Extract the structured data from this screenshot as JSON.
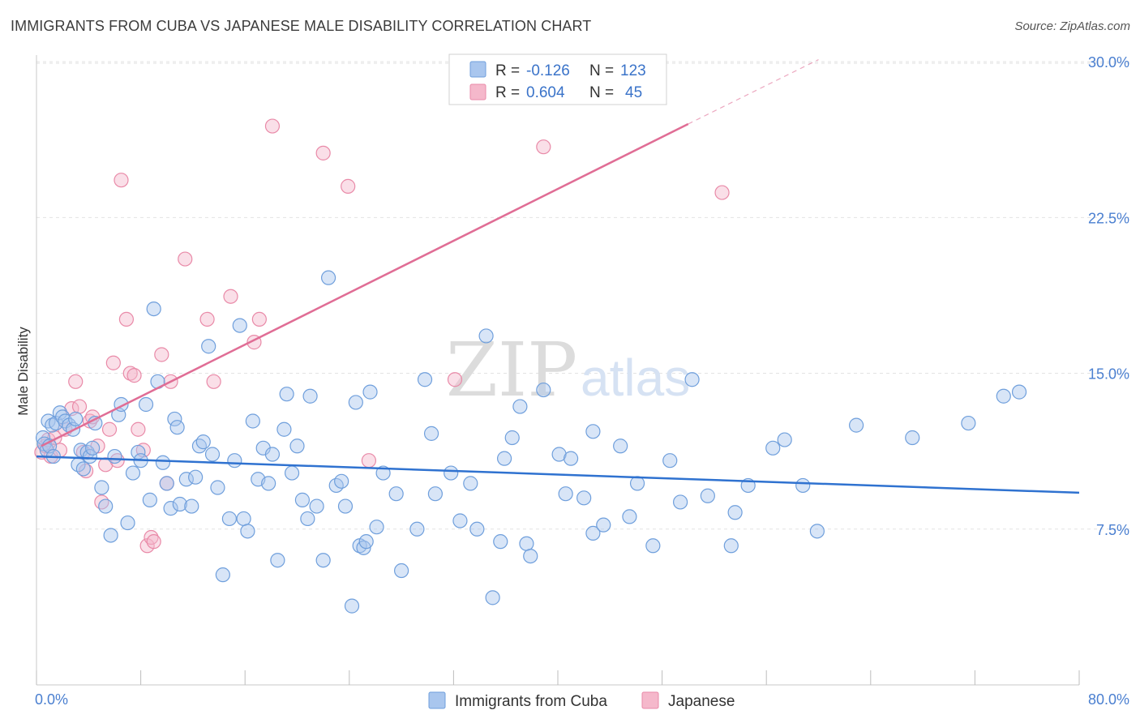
{
  "header": {
    "title": "IMMIGRANTS FROM CUBA VS JAPANESE MALE DISABILITY CORRELATION CHART",
    "source": "Source: ZipAtlas.com"
  },
  "watermark": {
    "zip": "ZIP",
    "atlas": "atlas"
  },
  "colors": {
    "blue_fill": "#a9c6ee",
    "blue_stroke": "#6f9fdc",
    "blue_line": "#2f72d0",
    "pink_fill": "#f5b8cb",
    "pink_stroke": "#e98aa8",
    "pink_line": "#e06d95",
    "grid": "#e2e2e2",
    "tick_text": "#4a7fd0"
  },
  "legend": {
    "rows": [
      {
        "r_label": "R = ",
        "r_value": "-0.126",
        "n_label": "N = ",
        "n_value": "123"
      },
      {
        "r_label": "R = ",
        "r_value": "0.604",
        "n_label": "N = ",
        "n_value": "45"
      }
    ]
  },
  "bottom_legend": [
    "Immigrants from Cuba",
    "Japanese"
  ],
  "chart_data": {
    "type": "scatter",
    "title": "IMMIGRANTS FROM CUBA VS JAPANESE MALE DISABILITY CORRELATION CHART",
    "xlabel": "",
    "ylabel": "Male Disability",
    "xlim": [
      0,
      80
    ],
    "ylim": [
      0,
      31.3
    ],
    "x_tick_labels": [
      "0.0%",
      "80.0%"
    ],
    "y_ticks": [
      7.5,
      15.0,
      22.5,
      30.0
    ],
    "y_tick_labels": [
      "7.5%",
      "15.0%",
      "22.5%",
      "30.0%"
    ],
    "grid": true,
    "legend_position": "top-center",
    "series": [
      {
        "name": "Immigrants from Cuba",
        "r": -0.126,
        "n": 123,
        "trend": {
          "x": [
            0,
            80
          ],
          "y": [
            11.0,
            9.25
          ]
        },
        "points": [
          [
            0.5,
            11.9
          ],
          [
            0.6,
            11.6
          ],
          [
            0.8,
            11.3
          ],
          [
            0.9,
            12.7
          ],
          [
            1.0,
            11.5
          ],
          [
            1.2,
            12.5
          ],
          [
            1.3,
            11.0
          ],
          [
            1.5,
            12.6
          ],
          [
            1.8,
            13.1
          ],
          [
            2.0,
            12.9
          ],
          [
            2.2,
            12.7
          ],
          [
            2.5,
            12.5
          ],
          [
            2.8,
            12.3
          ],
          [
            3.0,
            12.8
          ],
          [
            3.2,
            10.6
          ],
          [
            3.4,
            11.3
          ],
          [
            3.6,
            10.4
          ],
          [
            3.9,
            11.2
          ],
          [
            4.1,
            11.0
          ],
          [
            4.3,
            11.4
          ],
          [
            4.5,
            12.6
          ],
          [
            5.0,
            9.5
          ],
          [
            5.3,
            8.6
          ],
          [
            5.7,
            7.2
          ],
          [
            6.0,
            11.0
          ],
          [
            6.3,
            13.0
          ],
          [
            6.5,
            13.5
          ],
          [
            7.0,
            7.8
          ],
          [
            7.4,
            10.2
          ],
          [
            7.8,
            11.2
          ],
          [
            8.0,
            10.8
          ],
          [
            8.4,
            13.5
          ],
          [
            8.7,
            8.9
          ],
          [
            9.0,
            18.1
          ],
          [
            9.3,
            14.6
          ],
          [
            9.7,
            10.7
          ],
          [
            10.0,
            9.7
          ],
          [
            10.3,
            8.5
          ],
          [
            10.6,
            12.8
          ],
          [
            10.8,
            12.4
          ],
          [
            11.0,
            8.7
          ],
          [
            11.5,
            9.9
          ],
          [
            11.9,
            8.6
          ],
          [
            12.2,
            10.0
          ],
          [
            12.5,
            11.5
          ],
          [
            12.8,
            11.7
          ],
          [
            13.2,
            16.3
          ],
          [
            13.5,
            11.1
          ],
          [
            13.9,
            9.5
          ],
          [
            14.3,
            5.3
          ],
          [
            14.8,
            8.0
          ],
          [
            15.2,
            10.8
          ],
          [
            15.6,
            17.3
          ],
          [
            15.9,
            8.0
          ],
          [
            16.2,
            7.4
          ],
          [
            16.6,
            12.7
          ],
          [
            17.0,
            9.9
          ],
          [
            17.4,
            11.4
          ],
          [
            17.8,
            9.7
          ],
          [
            18.1,
            11.1
          ],
          [
            18.5,
            6.0
          ],
          [
            19.0,
            12.3
          ],
          [
            19.2,
            14.0
          ],
          [
            19.6,
            10.2
          ],
          [
            20.0,
            11.5
          ],
          [
            20.4,
            8.9
          ],
          [
            20.8,
            8.0
          ],
          [
            21.0,
            13.9
          ],
          [
            21.5,
            8.6
          ],
          [
            22.0,
            6.0
          ],
          [
            22.4,
            19.6
          ],
          [
            23.0,
            9.6
          ],
          [
            23.4,
            9.8
          ],
          [
            23.7,
            8.6
          ],
          [
            24.2,
            3.8
          ],
          [
            24.5,
            13.6
          ],
          [
            24.8,
            6.7
          ],
          [
            25.1,
            6.6
          ],
          [
            25.3,
            6.9
          ],
          [
            25.6,
            14.1
          ],
          [
            26.1,
            7.6
          ],
          [
            26.6,
            10.2
          ],
          [
            27.6,
            9.2
          ],
          [
            28.0,
            5.5
          ],
          [
            29.2,
            7.5
          ],
          [
            29.8,
            14.7
          ],
          [
            30.3,
            12.1
          ],
          [
            30.6,
            9.2
          ],
          [
            31.8,
            10.2
          ],
          [
            32.5,
            7.9
          ],
          [
            33.3,
            9.7
          ],
          [
            33.8,
            7.5
          ],
          [
            34.5,
            16.8
          ],
          [
            35.0,
            4.2
          ],
          [
            35.6,
            6.9
          ],
          [
            35.9,
            10.9
          ],
          [
            36.5,
            11.9
          ],
          [
            37.1,
            13.4
          ],
          [
            37.6,
            6.8
          ],
          [
            37.9,
            6.2
          ],
          [
            38.9,
            14.2
          ],
          [
            40.1,
            11.1
          ],
          [
            40.6,
            9.2
          ],
          [
            41.0,
            10.9
          ],
          [
            42.0,
            9.0
          ],
          [
            42.7,
            12.2
          ],
          [
            42.7,
            7.3
          ],
          [
            43.5,
            7.7
          ],
          [
            44.8,
            11.5
          ],
          [
            45.5,
            8.1
          ],
          [
            46.1,
            9.7
          ],
          [
            47.3,
            6.7
          ],
          [
            48.6,
            10.8
          ],
          [
            49.4,
            8.8
          ],
          [
            50.3,
            14.7
          ],
          [
            51.5,
            9.1
          ],
          [
            53.3,
            6.7
          ],
          [
            53.6,
            8.3
          ],
          [
            54.6,
            9.6
          ],
          [
            56.5,
            11.4
          ],
          [
            57.4,
            11.8
          ],
          [
            58.8,
            9.6
          ],
          [
            59.9,
            7.4
          ],
          [
            62.9,
            12.5
          ],
          [
            67.2,
            11.9
          ],
          [
            71.5,
            12.6
          ],
          [
            74.2,
            13.9
          ],
          [
            75.4,
            14.1
          ]
        ]
      },
      {
        "name": "Japanese",
        "r": 0.604,
        "n": 45,
        "trend": {
          "x": [
            0,
            50
          ],
          "y": [
            11.5,
            27.0
          ]
        },
        "trend_extension": {
          "x": [
            50,
            60
          ],
          "y": [
            27.0,
            30.1
          ]
        },
        "points": [
          [
            0.4,
            11.2
          ],
          [
            0.7,
            11.5
          ],
          [
            0.9,
            11.8
          ],
          [
            1.1,
            11.0
          ],
          [
            1.4,
            11.9
          ],
          [
            1.8,
            11.3
          ],
          [
            2.2,
            12.3
          ],
          [
            2.7,
            13.3
          ],
          [
            3.0,
            14.6
          ],
          [
            3.3,
            13.4
          ],
          [
            3.6,
            11.2
          ],
          [
            3.8,
            10.3
          ],
          [
            4.1,
            12.7
          ],
          [
            4.3,
            12.9
          ],
          [
            4.7,
            11.5
          ],
          [
            5.0,
            8.8
          ],
          [
            5.3,
            10.6
          ],
          [
            5.6,
            12.3
          ],
          [
            5.9,
            15.5
          ],
          [
            6.2,
            10.8
          ],
          [
            6.5,
            24.3
          ],
          [
            6.9,
            17.6
          ],
          [
            7.2,
            15.0
          ],
          [
            7.5,
            14.9
          ],
          [
            7.8,
            12.3
          ],
          [
            8.2,
            11.3
          ],
          [
            8.5,
            6.7
          ],
          [
            8.8,
            7.1
          ],
          [
            9.0,
            6.9
          ],
          [
            9.6,
            15.9
          ],
          [
            10.0,
            9.7
          ],
          [
            10.3,
            14.6
          ],
          [
            11.4,
            20.5
          ],
          [
            13.1,
            17.6
          ],
          [
            13.6,
            14.6
          ],
          [
            14.9,
            18.7
          ],
          [
            16.7,
            16.5
          ],
          [
            17.1,
            17.6
          ],
          [
            18.1,
            26.9
          ],
          [
            22.0,
            25.6
          ],
          [
            23.9,
            24.0
          ],
          [
            25.5,
            10.8
          ],
          [
            32.1,
            14.7
          ],
          [
            38.9,
            25.9
          ],
          [
            52.6,
            23.7
          ]
        ]
      }
    ]
  }
}
